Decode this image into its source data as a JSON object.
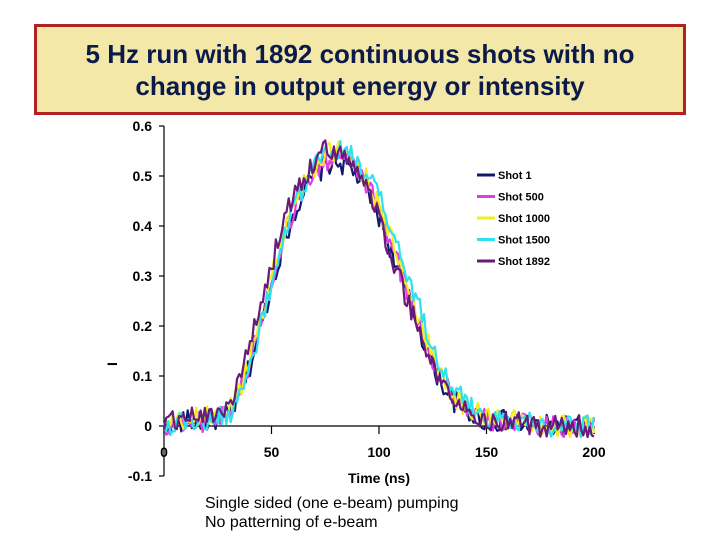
{
  "title": {
    "line1": "5 Hz run with 1892 continuous shots with no",
    "line2": "change in output energy or intensity"
  },
  "colors": {
    "title_background": "#f3e8a8",
    "title_border": "#b22222",
    "title_text": "#0b1a4a"
  },
  "notes": {
    "line1": "Single sided (one e-beam) pumping",
    "line2": "No patterning of e-beam"
  },
  "chart_data": {
    "type": "line",
    "title": "",
    "xlabel": "Time (ns)",
    "ylabel": "I",
    "xlim": [
      0,
      200
    ],
    "ylim": [
      -0.1,
      0.6
    ],
    "x_ticks": [
      "0",
      "50",
      "100",
      "150",
      "200"
    ],
    "y_ticks": [
      "0.6",
      "0.5",
      "0.4",
      "0.3",
      "0.2",
      "0.1",
      "0",
      "-0.1"
    ],
    "legend_position": "right",
    "x": [
      0,
      10,
      20,
      30,
      35,
      40,
      45,
      50,
      55,
      60,
      65,
      70,
      75,
      80,
      85,
      90,
      95,
      100,
      105,
      110,
      115,
      120,
      125,
      130,
      135,
      140,
      145,
      150,
      160,
      170,
      180,
      190,
      200
    ],
    "series": [
      {
        "name": "Shot 1",
        "color": "#101a6e",
        "values": [
          0.0,
          0.01,
          0.01,
          0.02,
          0.06,
          0.12,
          0.2,
          0.28,
          0.36,
          0.42,
          0.47,
          0.5,
          0.52,
          0.53,
          0.52,
          0.5,
          0.47,
          0.42,
          0.36,
          0.3,
          0.24,
          0.18,
          0.12,
          0.08,
          0.05,
          0.03,
          0.02,
          0.01,
          0.01,
          0.0,
          0.0,
          0.0,
          0.0
        ]
      },
      {
        "name": "Shot 500",
        "color": "#e23de2",
        "values": [
          0.0,
          0.01,
          0.01,
          0.03,
          0.07,
          0.13,
          0.21,
          0.29,
          0.37,
          0.43,
          0.48,
          0.51,
          0.53,
          0.54,
          0.53,
          0.51,
          0.48,
          0.43,
          0.37,
          0.31,
          0.25,
          0.19,
          0.13,
          0.09,
          0.06,
          0.04,
          0.02,
          0.01,
          0.01,
          0.0,
          0.0,
          0.0,
          0.0
        ]
      },
      {
        "name": "Shot 1000",
        "color": "#f5ec1c",
        "values": [
          0.0,
          0.01,
          0.02,
          0.03,
          0.07,
          0.14,
          0.22,
          0.3,
          0.38,
          0.44,
          0.49,
          0.52,
          0.54,
          0.55,
          0.54,
          0.52,
          0.49,
          0.44,
          0.38,
          0.32,
          0.26,
          0.2,
          0.14,
          0.1,
          0.06,
          0.04,
          0.03,
          0.02,
          0.01,
          0.01,
          0.0,
          0.0,
          0.0
        ]
      },
      {
        "name": "Shot 1500",
        "color": "#2fe0f0",
        "values": [
          0.0,
          0.01,
          0.01,
          0.02,
          0.06,
          0.12,
          0.2,
          0.28,
          0.36,
          0.43,
          0.48,
          0.52,
          0.54,
          0.55,
          0.55,
          0.53,
          0.5,
          0.46,
          0.4,
          0.34,
          0.28,
          0.22,
          0.16,
          0.11,
          0.07,
          0.05,
          0.03,
          0.02,
          0.01,
          0.01,
          0.0,
          0.0,
          0.0
        ]
      },
      {
        "name": "Shot 1892",
        "color": "#6a1b7a",
        "values": [
          0.0,
          0.02,
          0.02,
          0.04,
          0.09,
          0.16,
          0.24,
          0.32,
          0.4,
          0.46,
          0.5,
          0.53,
          0.55,
          0.55,
          0.54,
          0.51,
          0.47,
          0.42,
          0.35,
          0.29,
          0.23,
          0.17,
          0.12,
          0.08,
          0.05,
          0.03,
          0.02,
          0.01,
          0.01,
          0.0,
          0.0,
          0.0,
          0.0
        ]
      }
    ]
  }
}
